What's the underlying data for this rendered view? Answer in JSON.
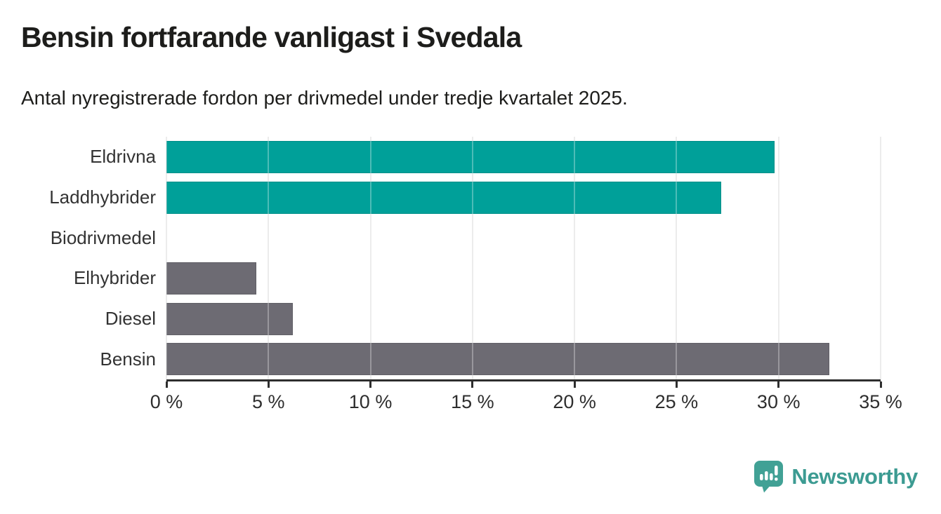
{
  "title": "Bensin fortfarande vanligast i Svedala",
  "subtitle": "Antal nyregistrerade fordon per drivmedel under tredje kvartalet 2025.",
  "chart_data": {
    "type": "bar",
    "orientation": "horizontal",
    "title": "Bensin fortfarande vanligast i Svedala",
    "subtitle": "Antal nyregistrerade fordon per drivmedel under tredje kvartalet 2025.",
    "categories": [
      "Eldrivna",
      "Laddhybrider",
      "Biodrivmedel",
      "Elhybrider",
      "Diesel",
      "Bensin"
    ],
    "values": [
      29.8,
      27.2,
      0,
      4.4,
      6.2,
      32.5
    ],
    "unit": "%",
    "bar_colors": [
      "#00a099",
      "#00a099",
      "#00a099",
      "#6d6b73",
      "#6d6b73",
      "#6d6b73"
    ],
    "xlim": [
      0,
      35
    ],
    "x_ticks": [
      0,
      5,
      10,
      15,
      20,
      25,
      30,
      35
    ],
    "x_tick_labels": [
      "0 %",
      "5 %",
      "10 %",
      "15 %",
      "20 %",
      "25 %",
      "30 %",
      "35 %"
    ],
    "grid": true,
    "legend": false
  },
  "colors": {
    "accent_teal": "#00a099",
    "neutral_gray": "#6d6b73",
    "gridline": "#e4e4e4",
    "axis": "#2e2e2e",
    "text": "#1d1d1b",
    "brand_teal": "#3c9b92"
  },
  "footer": {
    "brand": "Newsworthy",
    "logo_icon": "bar-chart-speech-bubble-icon"
  }
}
